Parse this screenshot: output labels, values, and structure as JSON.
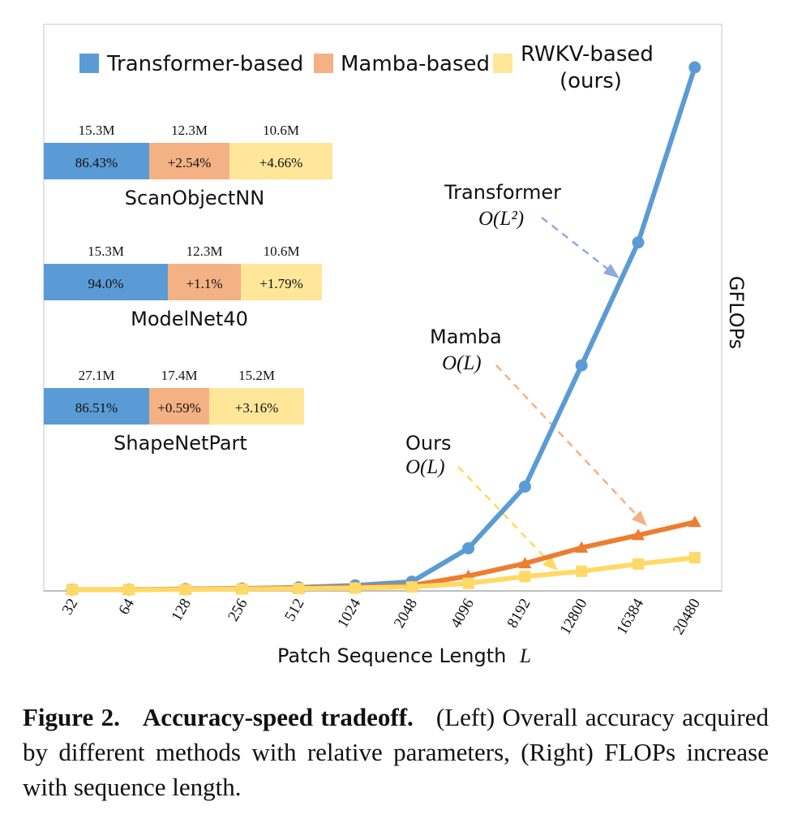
{
  "chart_data": {
    "type": "line",
    "xlabel": "Patch Sequence Length",
    "xlabel_symbol": "L",
    "ylabel": "GFLOPs",
    "categories": [
      "32",
      "64",
      "128",
      "256",
      "512",
      "1024",
      "2048",
      "4096",
      "8192",
      "12800",
      "16384",
      "20480"
    ],
    "ylim": [
      0,
      100
    ],
    "series": [
      {
        "name": "Transformer",
        "complexity": "O(L²)",
        "color": "#5b9bd5",
        "marker": "circle",
        "values": [
          0.1,
          0.1,
          0.2,
          0.3,
          0.5,
          0.9,
          1.6,
          8.0,
          19.8,
          43.0,
          66.5,
          100.0
        ]
      },
      {
        "name": "Mamba",
        "complexity": "O(L)",
        "color": "#ed7d31",
        "marker": "triangle",
        "values": [
          0.1,
          0.1,
          0.2,
          0.3,
          0.4,
          0.6,
          0.9,
          2.7,
          5.1,
          8.1,
          10.5,
          13.0
        ]
      },
      {
        "name": "Ours",
        "complexity": "O(L)",
        "color": "#ffd966",
        "marker": "square",
        "values": [
          0.1,
          0.1,
          0.1,
          0.2,
          0.3,
          0.4,
          0.6,
          1.3,
          2.6,
          3.6,
          5.0,
          6.2
        ]
      }
    ],
    "legend": [
      {
        "label": "Transformer-based",
        "color": "#5b9bd5"
      },
      {
        "label": "Mamba-based",
        "color": "#f4b183"
      },
      {
        "label": "RWKV-based",
        "label2": "(ours)",
        "color": "#ffe699"
      }
    ],
    "annotations": [
      {
        "label": "Transformer",
        "math": "O(L²)",
        "color": "#8faadc"
      },
      {
        "label": "Mamba",
        "math": "O(L)",
        "color": "#f4b183"
      },
      {
        "label": "Ours",
        "math": "O(L)",
        "color": "#ffd966"
      }
    ],
    "accuracy_bars": [
      {
        "dataset": "ScanObjectNN",
        "segments": [
          {
            "param": "15.3M",
            "value": "86.43%",
            "color": "#5b9bd5",
            "weight": 130
          },
          {
            "param": "12.3M",
            "value": "+2.54%",
            "color": "#f4b183",
            "weight": 99
          },
          {
            "param": "10.6M",
            "value": "+4.66%",
            "color": "#ffe699",
            "weight": 127
          }
        ]
      },
      {
        "dataset": "ModelNet40",
        "segments": [
          {
            "param": "15.3M",
            "value": "94.0%",
            "color": "#5b9bd5",
            "weight": 153
          },
          {
            "param": "12.3M",
            "value": "+1.1%",
            "color": "#f4b183",
            "weight": 90
          },
          {
            "param": "10.6M",
            "value": "+1.79%",
            "color": "#ffe699",
            "weight": 100
          }
        ]
      },
      {
        "dataset": "ShapeNetPart",
        "segments": [
          {
            "param": "27.1M",
            "value": "86.51%",
            "color": "#5b9bd5",
            "weight": 130
          },
          {
            "param": "17.4M",
            "value": "+0.59%",
            "color": "#f4b183",
            "weight": 74
          },
          {
            "param": "15.2M",
            "value": "+3.16%",
            "color": "#ffe699",
            "weight": 117
          }
        ]
      }
    ]
  },
  "caption": {
    "label": "Figure 2.",
    "title": "Accuracy-speed tradeoff.",
    "text": "(Left) Overall accuracy acquired by different methods with relative parameters, (Right) FLOPs increase with sequence length."
  }
}
